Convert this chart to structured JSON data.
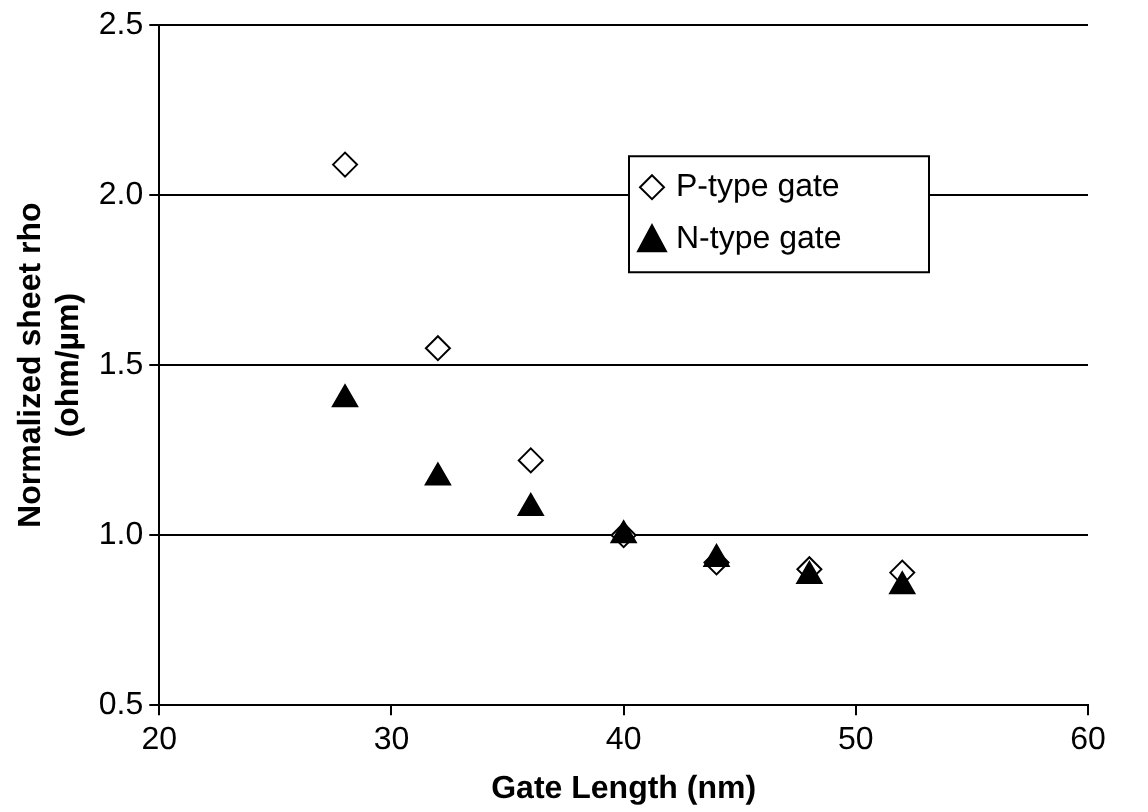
{
  "chart_data": {
    "type": "scatter",
    "xlabel": "Gate Length (nm)",
    "ylabel": "Normalized sheet rho (ohm/µm)",
    "series": [
      {
        "name": "P-type gate",
        "color": "#000000",
        "marker": "diamond",
        "x": [
          28,
          32,
          36,
          40,
          44,
          48,
          52
        ],
        "values": [
          2.09,
          1.55,
          1.22,
          1.0,
          0.92,
          0.9,
          0.89
        ]
      },
      {
        "name": "N-type gate",
        "color": "#000000",
        "marker": "triangle",
        "x": [
          28,
          32,
          36,
          40,
          44,
          48,
          52
        ],
        "values": [
          1.4,
          1.17,
          1.08,
          1.0,
          0.93,
          0.88,
          0.85
        ]
      }
    ],
    "xlim": [
      20,
      60
    ],
    "xticks": [
      20,
      30,
      40,
      50,
      60
    ],
    "ylim": [
      0.5,
      2.5
    ],
    "yticks": [
      0.5,
      {
        "value": 1,
        "label": "1.0"
      },
      1.5,
      {
        "value": 2,
        "label": "2.0"
      },
      2.5
    ],
    "grid": "y",
    "legend": "top right"
  }
}
